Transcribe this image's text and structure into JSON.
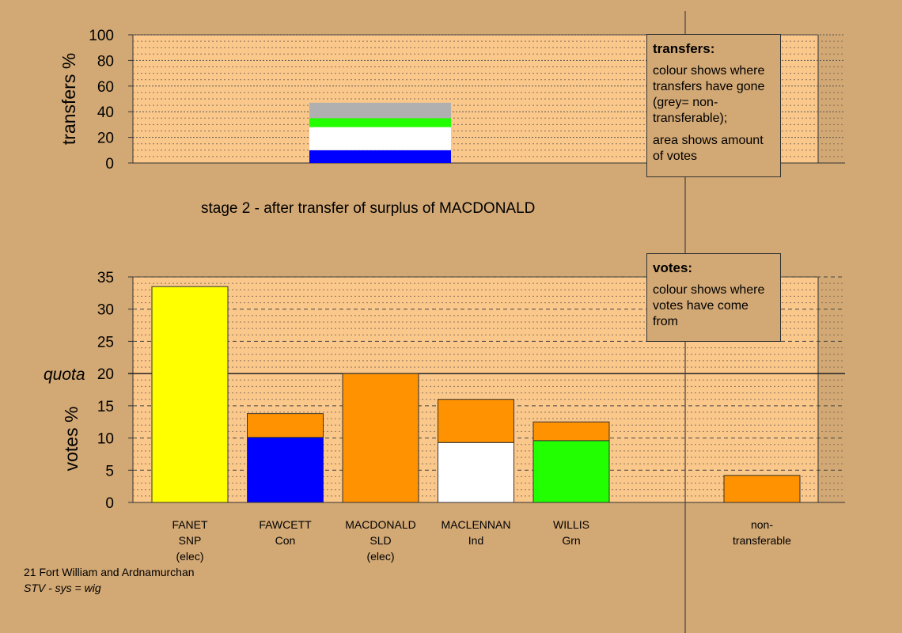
{
  "stage_title": "stage 2 - after transfer of surplus of MACDONALD",
  "footer": {
    "line1": "21 Fort William and Ardnamurchan",
    "line2": "STV - sys = wig"
  },
  "legend_transfers": {
    "heading": "transfers:",
    "para1": "colour shows where transfers have gone (grey= non-transferable);",
    "para2": "area shows amount of votes"
  },
  "legend_votes": {
    "heading": "votes:",
    "para1": "colour shows where votes have come from"
  },
  "colors": {
    "background": "#d2a874",
    "panel": "#fbc88c",
    "SNP": "#ffff00",
    "Con": "#0000ff",
    "SLD": "#ff9200",
    "Ind": "#ffffff",
    "Grn": "#22ff00",
    "non_transferable": "#b0b0b0"
  },
  "chart_data": [
    {
      "type": "bar",
      "name": "transfers",
      "ylabel": "transfers %",
      "ylim": [
        0,
        100
      ],
      "yticks": [
        "0",
        "20",
        "40",
        "60",
        "80",
        "100"
      ],
      "bar": {
        "from": "MACDONALD",
        "segments": [
          {
            "to": "FAWCETT Con",
            "color": "#0000ff",
            "value": 10
          },
          {
            "to": "MACLENNAN Ind",
            "color": "#ffffff",
            "value": 18
          },
          {
            "to": "WILLIS Grn",
            "color": "#22ff00",
            "value": 7
          },
          {
            "to": "non-transferable",
            "color": "#b0b0b0",
            "value": 12
          }
        ]
      }
    },
    {
      "type": "bar",
      "name": "votes",
      "ylabel": "votes %",
      "ylim": [
        0,
        35
      ],
      "yticks": [
        "0",
        "5",
        "10",
        "15",
        "20",
        "25",
        "30",
        "35"
      ],
      "quota": {
        "label": "quota",
        "value": 20
      },
      "categories": [
        {
          "lines": [
            "FANET",
            "SNP",
            "(elec)"
          ],
          "segments": [
            {
              "color": "#ffff00",
              "value": 33.5
            }
          ]
        },
        {
          "lines": [
            "FAWCETT",
            "Con"
          ],
          "segments": [
            {
              "color": "#0000ff",
              "value": 10.1
            },
            {
              "color": "#ff9200",
              "value": 3.7
            }
          ]
        },
        {
          "lines": [
            "MACDONALD",
            "SLD",
            "(elec)"
          ],
          "segments": [
            {
              "color": "#ff9200",
              "value": 20
            }
          ]
        },
        {
          "lines": [
            "MACLENNAN",
            "Ind"
          ],
          "segments": [
            {
              "color": "#ffffff",
              "value": 9.3
            },
            {
              "color": "#ff9200",
              "value": 6.7
            }
          ]
        },
        {
          "lines": [
            "WILLIS",
            "Grn"
          ],
          "segments": [
            {
              "color": "#22ff00",
              "value": 9.6
            },
            {
              "color": "#ff9200",
              "value": 2.9
            }
          ]
        },
        {
          "lines": [],
          "segments": []
        },
        {
          "lines": [
            "non-",
            "transferable"
          ],
          "segments": [
            {
              "color": "#ff9200",
              "value": 4.2
            }
          ]
        }
      ]
    }
  ]
}
